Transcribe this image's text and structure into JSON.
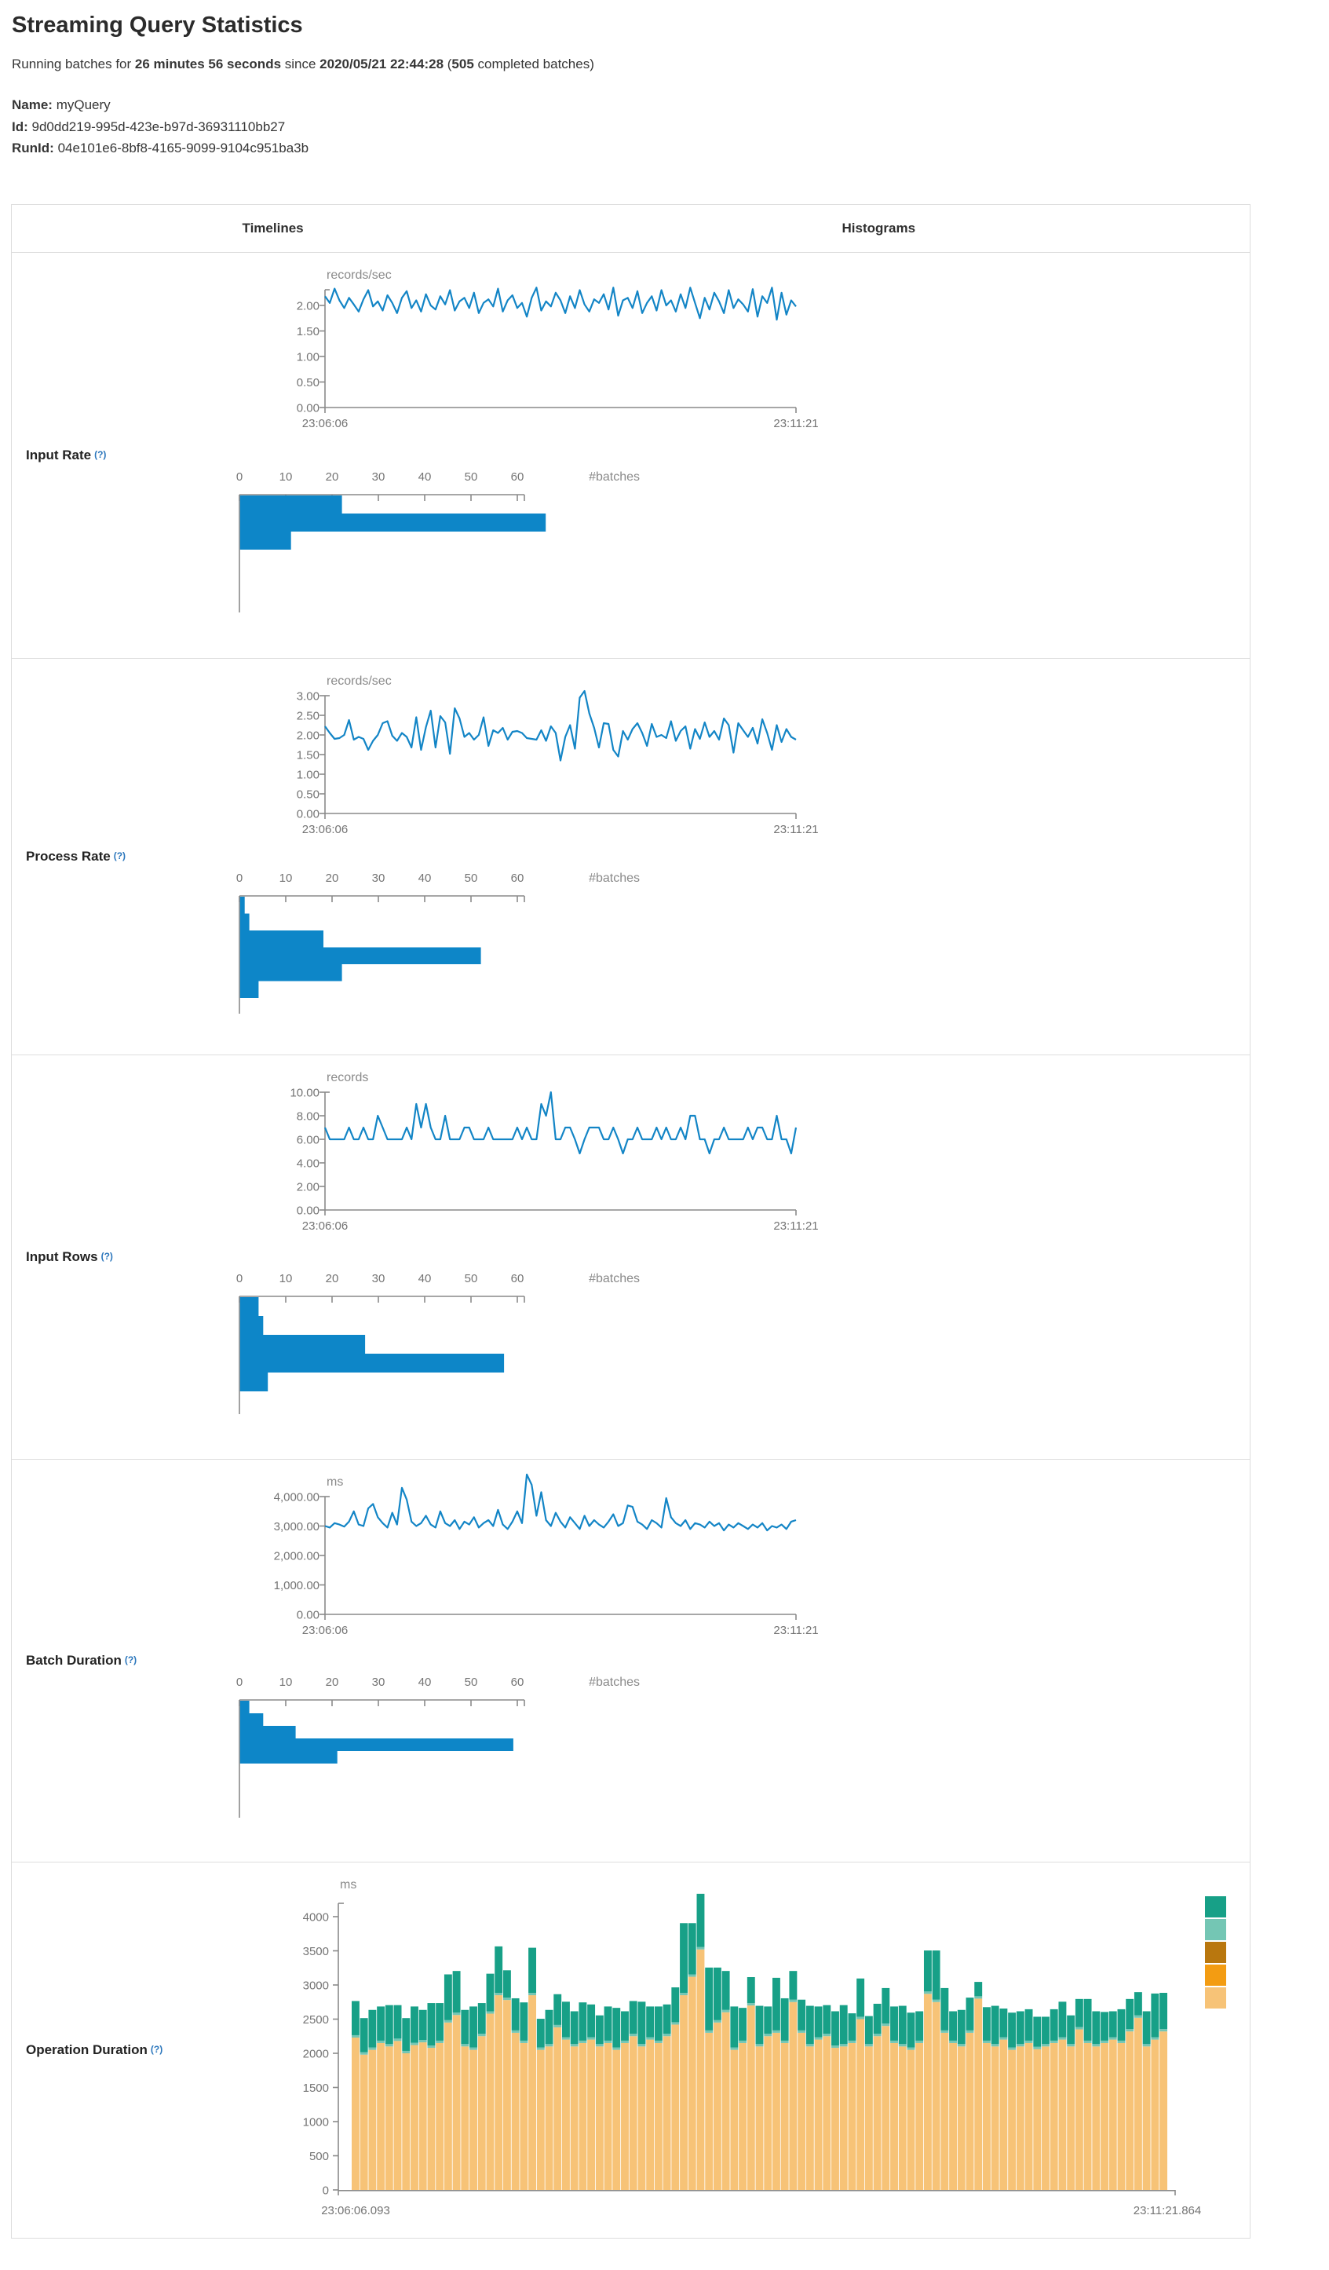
{
  "page": {
    "title": "Streaming Query Statistics",
    "subtitle": {
      "prefix": "Running batches for ",
      "duration": "26 minutes 56 seconds",
      "middle": " since ",
      "timestamp": "2020/05/21 22:44:28",
      "open_paren": " (",
      "count": "505",
      "suffix": " completed batches)"
    },
    "meta": {
      "name_label": "Name:",
      "name_value": "myQuery",
      "id_label": "Id:",
      "id_value": "9d0dd219-995d-423e-b97d-36931110bb27",
      "runid_label": "RunId:",
      "runid_value": "04e101e6-8bf8-4165-9099-9104c951ba3b"
    }
  },
  "table": {
    "timelines_header": "Timelines",
    "histograms_header": "Histograms",
    "batches_axis_label": "#batches"
  },
  "colors": {
    "line_blue": "#1385c6",
    "hist_blue": "#0d86c8",
    "axis": "#8a8a8a",
    "tick_text": "#747474",
    "border": "#dddddd",
    "help": "#2a76bc",
    "stack_teal": "#17a087",
    "stack_light_teal": "#74c6b4",
    "stack_brown": "#b9770e",
    "stack_orange": "#f39c12",
    "stack_tan": "#f7c377"
  },
  "rows": [
    {
      "id": "input-rate",
      "label": "Input Rate",
      "help": "(?)",
      "unit": "records/sec",
      "x_start": "23:06:06",
      "x_end": "23:11:21",
      "y_top_value": 2.3077,
      "y_ticks": [
        {
          "value": 2,
          "label": "2.00"
        },
        {
          "value": 1.5,
          "label": "1.50"
        },
        {
          "value": 1,
          "label": "1.00"
        },
        {
          "value": 0.5,
          "label": "0.50"
        },
        {
          "value": 0,
          "label": "0.00"
        }
      ],
      "values": [
        2.18,
        2.05,
        2.33,
        2.1,
        1.95,
        2.15,
        2.02,
        1.88,
        2.12,
        2.3,
        1.98,
        2.08,
        1.9,
        2.2,
        2.05,
        1.85,
        2.15,
        2.28,
        1.95,
        2.1,
        1.88,
        2.22,
        2.0,
        1.92,
        2.18,
        2.02,
        2.3,
        1.9,
        2.08,
        2.15,
        1.95,
        2.25,
        1.85,
        2.05,
        2.12,
        1.98,
        2.33,
        1.88,
        2.1,
        2.2,
        1.95,
        2.05,
        1.78,
        2.15,
        2.35,
        1.9,
        2.08,
        1.98,
        2.25,
        2.1,
        1.85,
        2.18,
        1.95,
        2.3,
        2.02,
        1.88,
        2.12,
        2.05,
        2.22,
        1.92,
        2.35,
        1.8,
        2.1,
        2.15,
        1.95,
        2.28,
        1.85,
        2.05,
        2.18,
        1.9,
        2.3,
        2.0,
        2.1,
        1.88,
        2.22,
        1.95,
        2.35,
        2.05,
        1.75,
        2.15,
        1.92,
        2.25,
        2.08,
        1.85,
        2.3,
        1.95,
        2.12,
        2.02,
        1.88,
        2.32,
        1.78,
        2.18,
        2.05,
        2.35,
        1.72,
        2.25,
        1.82,
        2.1,
        1.98
      ],
      "histogram": {
        "tick_labels": [
          "0",
          "10",
          "20",
          "30",
          "40",
          "50",
          "60"
        ],
        "bins": [
          22,
          66,
          11
        ]
      }
    },
    {
      "id": "process-rate",
      "label": "Process Rate",
      "help": "(?)",
      "unit": "records/sec",
      "x_start": "23:06:06",
      "x_end": "23:11:21",
      "y_top_value": 3.0,
      "y_ticks": [
        {
          "value": 3,
          "label": "3.00"
        },
        {
          "value": 2.5,
          "label": "2.50"
        },
        {
          "value": 2,
          "label": "2.00"
        },
        {
          "value": 1.5,
          "label": "1.50"
        },
        {
          "value": 1,
          "label": "1.00"
        },
        {
          "value": 0.5,
          "label": "0.50"
        },
        {
          "value": 0,
          "label": "0.00"
        }
      ],
      "values": [
        2.22,
        2.05,
        1.9,
        1.92,
        2.0,
        2.38,
        1.88,
        1.95,
        1.9,
        1.62,
        1.85,
        2.0,
        2.3,
        2.35,
        1.98,
        1.85,
        2.05,
        1.95,
        1.68,
        2.45,
        1.62,
        2.2,
        2.62,
        1.68,
        2.48,
        2.32,
        1.52,
        2.68,
        2.42,
        1.95,
        2.05,
        1.88,
        2.0,
        2.45,
        1.72,
        2.12,
        2.05,
        2.18,
        1.88,
        2.08,
        2.1,
        2.05,
        1.92,
        1.9,
        1.88,
        2.12,
        1.85,
        2.22,
        2.05,
        1.35,
        1.95,
        2.25,
        1.65,
        2.95,
        3.12,
        2.55,
        2.18,
        1.68,
        2.3,
        2.28,
        1.62,
        1.45,
        2.1,
        1.88,
        2.15,
        2.3,
        2.05,
        1.72,
        2.28,
        1.95,
        2.0,
        1.92,
        2.35,
        1.85,
        2.1,
        2.22,
        1.65,
        2.15,
        1.9,
        2.32,
        1.95,
        2.1,
        1.88,
        2.42,
        2.25,
        1.55,
        2.3,
        2.12,
        1.95,
        2.18,
        1.78,
        2.4,
        2.05,
        1.62,
        2.25,
        1.82,
        2.15,
        1.95,
        1.88
      ],
      "histogram": {
        "tick_labels": [
          "0",
          "10",
          "20",
          "30",
          "40",
          "50",
          "60"
        ],
        "bins": [
          1,
          2,
          18,
          52,
          22,
          4
        ]
      }
    },
    {
      "id": "input-rows",
      "label": "Input Rows",
      "help": "(?)",
      "unit": "records",
      "x_start": "23:06:06",
      "x_end": "23:11:21",
      "y_top_value": 10,
      "y_ticks": [
        {
          "value": 10,
          "label": "10.00"
        },
        {
          "value": 8,
          "label": "8.00"
        },
        {
          "value": 6,
          "label": "6.00"
        },
        {
          "value": 4,
          "label": "4.00"
        },
        {
          "value": 2,
          "label": "2.00"
        },
        {
          "value": 0,
          "label": "0.00"
        }
      ],
      "values": [
        7,
        6,
        6,
        6,
        6,
        7,
        6,
        6,
        7,
        6,
        6,
        8,
        7,
        6,
        6,
        6,
        6,
        7,
        6,
        9,
        7,
        9,
        7,
        6,
        6,
        8,
        6,
        6,
        6,
        7,
        7,
        6,
        6,
        6,
        7,
        6,
        6,
        6,
        6,
        6,
        7,
        6,
        7,
        6,
        6,
        9,
        8,
        10,
        6,
        6,
        7,
        7,
        6,
        4.8,
        6,
        7,
        7,
        7,
        6,
        6,
        7,
        6,
        4.8,
        6,
        6,
        7,
        6,
        6,
        6,
        7,
        6,
        7,
        6,
        6,
        7,
        6,
        8,
        8,
        6,
        6,
        4.8,
        6,
        6,
        7,
        6,
        6,
        6,
        6,
        7,
        6,
        7,
        7,
        6,
        6,
        8,
        6,
        6,
        4.8,
        7
      ],
      "histogram": {
        "tick_labels": [
          "0",
          "10",
          "20",
          "30",
          "40",
          "50",
          "60"
        ],
        "bins": [
          4,
          5,
          27,
          57,
          6
        ]
      }
    },
    {
      "id": "batch-duration",
      "label": "Batch Duration",
      "help": "(?)",
      "unit": "ms",
      "x_start": "23:06:06",
      "x_end": "23:11:21",
      "y_top_value": 4000,
      "y_ticks": [
        {
          "value": 4000,
          "label": "4,000.00"
        },
        {
          "value": 3000,
          "label": "3,000.00"
        },
        {
          "value": 2000,
          "label": "2,000.00"
        },
        {
          "value": 1000,
          "label": "1,000.00"
        },
        {
          "value": 0,
          "label": "0.00"
        }
      ],
      "values": [
        3000,
        2950,
        3100,
        3050,
        2980,
        3150,
        3500,
        3050,
        3000,
        3600,
        3750,
        3300,
        3100,
        2950,
        3450,
        3050,
        4300,
        3900,
        3150,
        3000,
        3100,
        3350,
        3050,
        2950,
        3500,
        3100,
        3000,
        3200,
        2900,
        3150,
        3050,
        3300,
        2950,
        3100,
        3200,
        3000,
        3550,
        3050,
        2900,
        3150,
        3500,
        3100,
        4750,
        4400,
        3350,
        4150,
        3200,
        3000,
        3450,
        3150,
        2950,
        3300,
        3100,
        2900,
        3350,
        3000,
        3200,
        3050,
        2950,
        3150,
        3400,
        3000,
        3100,
        3700,
        3650,
        3150,
        3050,
        2900,
        3200,
        3100,
        2950,
        3950,
        3300,
        3100,
        3000,
        3200,
        2900,
        3100,
        3050,
        2950,
        3150,
        3000,
        3100,
        2850,
        3050,
        2950,
        3100,
        3000,
        2900,
        3050,
        2950,
        3100,
        2850,
        3000,
        2950,
        3050,
        2900,
        3150,
        3200
      ],
      "histogram": {
        "tick_labels": [
          "0",
          "10",
          "20",
          "30",
          "40",
          "50",
          "60"
        ],
        "bins": [
          2,
          5,
          12,
          59,
          21
        ]
      }
    }
  ],
  "operation_duration": {
    "id": "operation-duration",
    "label": "Operation Duration",
    "help": "(?)",
    "unit": "ms",
    "x_start": "23:06:06.093",
    "x_end": "23:11:21.864",
    "y_ticks": [
      {
        "value": 4000,
        "label": "4000"
      },
      {
        "value": 3500,
        "label": "3500"
      },
      {
        "value": 3000,
        "label": "3000"
      },
      {
        "value": 2500,
        "label": "2500"
      },
      {
        "value": 2000,
        "label": "2000"
      },
      {
        "value": 1500,
        "label": "1500"
      },
      {
        "value": 1000,
        "label": "1000"
      },
      {
        "value": 500,
        "label": "500"
      },
      {
        "value": 0,
        "label": "0"
      }
    ],
    "legend_colors": [
      "#17a087",
      "#74c6b4",
      "#b9770e",
      "#f39c12",
      "#f7c377"
    ],
    "stack": {
      "sliver_value": 35,
      "base_values": [
        2230,
        1980,
        2050,
        2150,
        2100,
        2180,
        2000,
        2120,
        2160,
        2080,
        2150,
        2450,
        2560,
        2100,
        2050,
        2250,
        2580,
        2850,
        2780,
        2300,
        2150,
        2850,
        2050,
        2100,
        2380,
        2200,
        2100,
        2150,
        2200,
        2100,
        2150,
        2050,
        2150,
        2250,
        2100,
        2200,
        2150,
        2250,
        2420,
        2850,
        3120,
        3520,
        2300,
        2450,
        2600,
        2050,
        2150,
        2700,
        2100,
        2250,
        2300,
        2150,
        2750,
        2300,
        2100,
        2200,
        2250,
        2080,
        2100,
        2150,
        2500,
        2100,
        2250,
        2400,
        2150,
        2100,
        2050,
        2150,
        2870,
        2750,
        2300,
        2150,
        2100,
        2300,
        2800,
        2150,
        2100,
        2200,
        2050,
        2100,
        2150,
        2060,
        2100,
        2150,
        2200,
        2100,
        2350,
        2150,
        2100,
        2150,
        2200,
        2150,
        2320,
        2520,
        2100,
        2200,
        2320
      ],
      "top_values": [
        500,
        500,
        550,
        500,
        570,
        490,
        480,
        530,
        440,
        620,
        550,
        670,
        610,
        500,
        600,
        450,
        550,
        680,
        400,
        470,
        560,
        660,
        420,
        500,
        450,
        520,
        480,
        560,
        480,
        420,
        500,
        580,
        430,
        480,
        620,
        450,
        500,
        430,
        510,
        1020,
        750,
        780,
        920,
        770,
        570,
        600,
        480,
        380,
        560,
        400,
        770,
        620,
        420,
        450,
        560,
        450,
        420,
        500,
        570,
        400,
        560,
        410,
        440,
        520,
        500,
        560,
        510,
        430,
        600,
        720,
        620,
        430,
        500,
        480,
        210,
        490,
        560,
        420,
        510,
        480,
        460,
        440,
        400,
        460,
        520,
        420,
        410,
        610,
        480,
        420,
        380,
        460,
        440,
        340,
        480,
        640,
        530
      ]
    }
  }
}
